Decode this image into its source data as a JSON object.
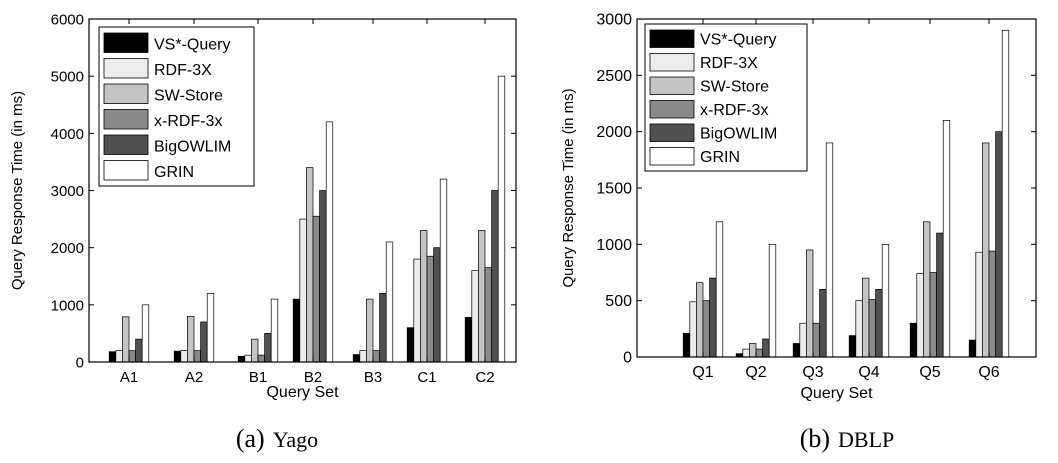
{
  "chart_data": [
    {
      "type": "bar",
      "panel_label": "(a)",
      "panel_name": "Yago",
      "xlabel": "Query Set",
      "ylabel": "Query Response Time (in ms)",
      "ylim": [
        0,
        6000
      ],
      "yticks": [
        0,
        1000,
        2000,
        3000,
        4000,
        5000,
        6000
      ],
      "grid": false,
      "legend_position": "top-left",
      "categories": [
        "A1",
        "A2",
        "B1",
        "B2",
        "B3",
        "C1",
        "C2"
      ],
      "series": [
        {
          "name": "VS*-Query",
          "color": "#000000",
          "values": [
            180,
            190,
            100,
            1100,
            130,
            600,
            780
          ]
        },
        {
          "name": "RDF-3X",
          "color": "#ececec",
          "values": [
            200,
            200,
            120,
            2500,
            200,
            1800,
            1600
          ]
        },
        {
          "name": "SW-Store",
          "color": "#c4c4c4",
          "values": [
            790,
            800,
            400,
            3400,
            1100,
            2300,
            2300
          ]
        },
        {
          "name": "x-RDF-3x",
          "color": "#8a8a8a",
          "values": [
            200,
            200,
            120,
            2550,
            200,
            1850,
            1650
          ]
        },
        {
          "name": "BigOWLIM",
          "color": "#505050",
          "values": [
            400,
            700,
            500,
            3000,
            1200,
            2000,
            3000
          ]
        },
        {
          "name": "GRIN",
          "color": "#ffffff",
          "values": [
            1000,
            1200,
            1100,
            4200,
            2100,
            3200,
            5000
          ]
        }
      ]
    },
    {
      "type": "bar",
      "panel_label": "(b)",
      "panel_name": "DBLP",
      "xlabel": "Query Set",
      "ylabel": "Query Response Time (in ms)",
      "ylim": [
        0,
        3000
      ],
      "yticks": [
        0,
        500,
        1000,
        1500,
        2000,
        2500,
        3000
      ],
      "grid": false,
      "legend_position": "top-left",
      "categories": [
        "Q1",
        "Q2",
        "Q3",
        "Q4",
        "Q5",
        "Q6"
      ],
      "series": [
        {
          "name": "VS*-Query",
          "color": "#000000",
          "values": [
            210,
            30,
            120,
            190,
            300,
            150
          ]
        },
        {
          "name": "RDF-3X",
          "color": "#ececec",
          "values": [
            490,
            70,
            300,
            500,
            740,
            930
          ]
        },
        {
          "name": "SW-Store",
          "color": "#c4c4c4",
          "values": [
            660,
            120,
            950,
            700,
            1200,
            1900
          ]
        },
        {
          "name": "x-RDF-3x",
          "color": "#8a8a8a",
          "values": [
            500,
            70,
            300,
            510,
            750,
            940
          ]
        },
        {
          "name": "BigOWLIM",
          "color": "#505050",
          "values": [
            700,
            160,
            600,
            600,
            1100,
            2000
          ]
        },
        {
          "name": "GRIN",
          "color": "#ffffff",
          "values": [
            1200,
            1000,
            1900,
            1000,
            2100,
            2900
          ]
        }
      ]
    }
  ]
}
